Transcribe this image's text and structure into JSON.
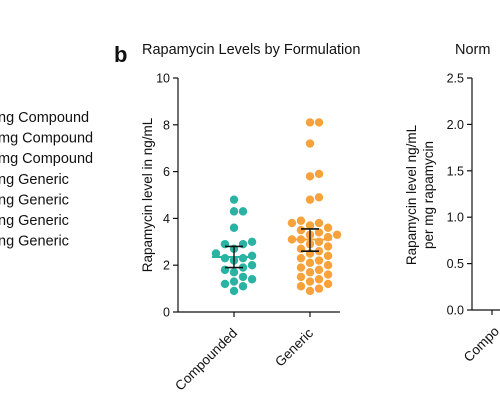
{
  "left_legend": {
    "entries": [
      "ng Compound",
      "mg Compound",
      "mg Compound",
      "ng Generic",
      "ng Generic",
      "ng Generic",
      "ng Generic"
    ]
  },
  "chart_data": [
    {
      "type": "scatter",
      "panel_letter": "b",
      "title": "Rapamycin Levels by Formulation",
      "xlabel": "",
      "ylabel": "Rapamycin level in ng/mL",
      "ylim": [
        0,
        10
      ],
      "yticks": [
        "0",
        "2",
        "4",
        "6",
        "8",
        "10"
      ],
      "categories": [
        "Compounded",
        "Generic"
      ],
      "colors": {
        "Compounded": "#2ab3a3",
        "Generic": "#f7a23b",
        "error": "#111111"
      },
      "series": [
        {
          "category": "Compounded",
          "mean": 2.35,
          "ci": [
            1.9,
            2.8
          ],
          "values": [
            4.8,
            4.3,
            4.3,
            3.6,
            3.0,
            2.9,
            2.9,
            2.7,
            2.5,
            2.4,
            2.3,
            2.3,
            2.2,
            2.0,
            1.9,
            1.8,
            1.7,
            1.5,
            1.4,
            1.3,
            1.2,
            1.1,
            0.9
          ]
        },
        {
          "category": "Generic",
          "mean": 3.1,
          "ci": [
            2.6,
            3.55
          ],
          "values": [
            8.1,
            8.1,
            7.2,
            5.9,
            5.8,
            4.9,
            4.8,
            3.9,
            3.8,
            3.8,
            3.7,
            3.6,
            3.5,
            3.4,
            3.3,
            3.3,
            3.2,
            3.1,
            3.1,
            3.0,
            2.9,
            2.8,
            2.7,
            2.6,
            2.5,
            2.4,
            2.3,
            2.2,
            2.1,
            2.0,
            1.9,
            1.8,
            1.7,
            1.6,
            1.5,
            1.4,
            1.3,
            1.2,
            1.1,
            1.0,
            0.9
          ]
        }
      ]
    },
    {
      "type": "scatter",
      "title": "Norm",
      "xlabel": "",
      "ylabel_lines": [
        "Rapamycin level ng/mL",
        "per mg rapamycin"
      ],
      "ylim": [
        0,
        2.5
      ],
      "yticks": [
        "0.0",
        "0.5",
        "1.0",
        "1.5",
        "2.0",
        "2.5"
      ],
      "categories": [
        "Compo"
      ]
    }
  ]
}
